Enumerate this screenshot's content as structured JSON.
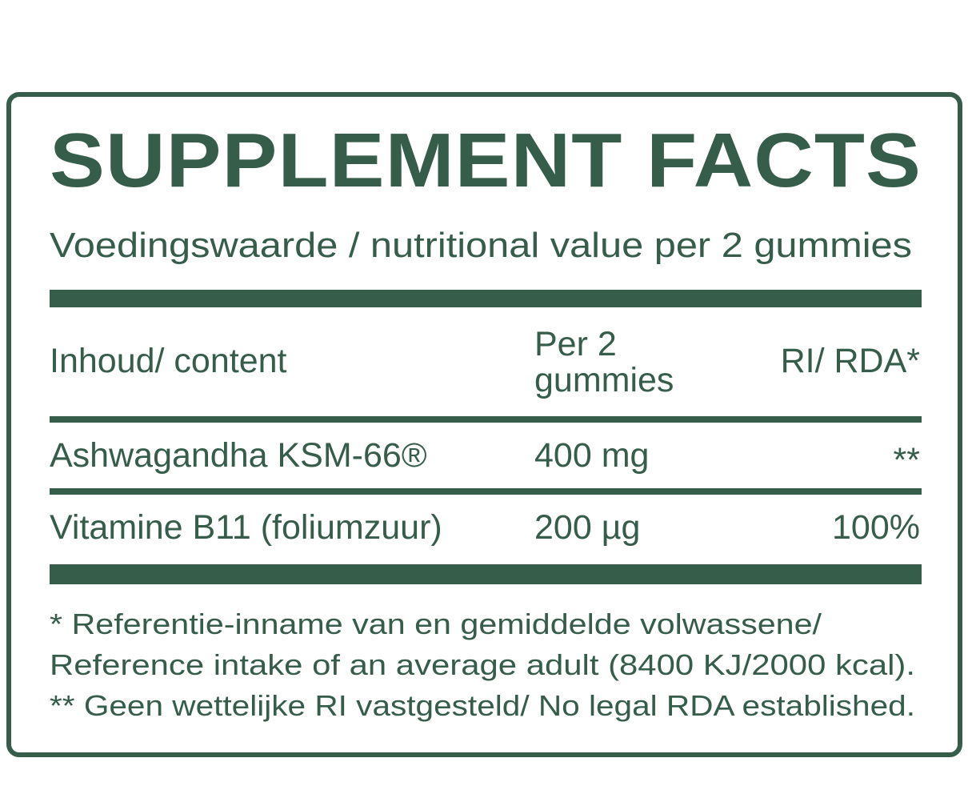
{
  "colors": {
    "brand": "#365c4a",
    "background": "#ffffff"
  },
  "title": "SUPPLEMENT FACTS",
  "subtitle": "Voedingswaarde / nutritional value per 2 gummies",
  "table": {
    "headers": [
      "Inhoud/ content",
      "Per 2",
      "gummies",
      "RI/ RDA*"
    ],
    "rows": [
      {
        "name": "Ashwagandha KSM-66®",
        "amount": "400 mg",
        "ri": "**"
      },
      {
        "name": "Vitamine B11 (foliumzuur)",
        "amount": "200 µg",
        "ri": "100%"
      }
    ]
  },
  "footnotes": [
    "* Referentie-inname van en gemiddelde volwassene/",
    "Reference intake of an average adult (8400 KJ/2000 kcal).",
    "** Geen wettelijke RI vastgesteld/ No legal RDA established."
  ]
}
